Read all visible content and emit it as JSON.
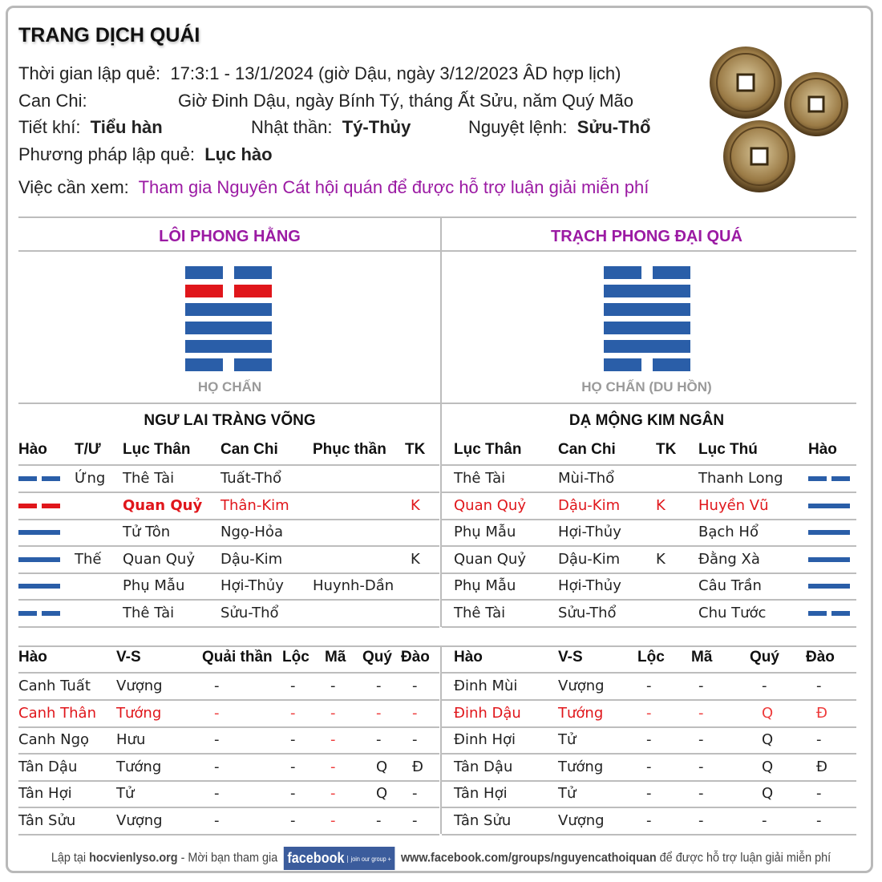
{
  "title": "TRANG DỊCH QUÁI",
  "info": {
    "time_label": "Thời gian lập quẻ:",
    "time_value": "17:3:1 - 13/1/2024 (giờ Dậu, ngày 3/12/2023 ÂD hợp lịch)",
    "canchi_label": "Can Chi:",
    "canchi_value": "Giờ Đinh Dậu, ngày Bính Tý, tháng Ất Sửu, năm Quý Mão",
    "tietkhi_label": "Tiết khí:",
    "tietkhi_value": "Tiểu hàn",
    "nhatthan_label": "Nhật thần:",
    "nhatthan_value": "Tý-Thủy",
    "nguyetlenh_label": "Nguyệt lệnh:",
    "nguyetlenh_value": "Sửu-Thổ",
    "method_label": "Phương pháp lập quẻ:",
    "method_value": "Lục hào",
    "question_label": "Việc cần xem:",
    "question_value": "Tham gia Nguyên Cát hội quán để được hỗ trợ luận giải miễn phí"
  },
  "colors": {
    "purple": "#9b1aa3",
    "blue": "#2a5ea8",
    "red": "#e0161b"
  },
  "main_hexagram": {
    "name": "LÔI PHONG HẰNG",
    "family": "HỌ CHẤN",
    "lines_top_down": [
      "yin",
      "yin-moving",
      "yang",
      "yang",
      "yang",
      "yin"
    ],
    "subtitle": "NGƯ LAI TRÀNG VÕNG"
  },
  "changed_hexagram": {
    "name": "TRẠCH PHONG ĐẠI QUÁ",
    "family": "HỌ CHẤN (DU HỒN)",
    "lines_top_down": [
      "yin",
      "yang",
      "yang",
      "yang",
      "yang",
      "yin"
    ],
    "subtitle": "DẠ MỘNG KIM NGÂN"
  },
  "left_table": {
    "headers": [
      "Hào",
      "T/Ư",
      "Lục Thân",
      "Can Chi",
      "Phục thần",
      "TK"
    ],
    "rows": [
      {
        "line": "yin",
        "tu": "Ứng",
        "lucthan": "Thê Tài",
        "canchi": "Tuất-Thổ",
        "phucthan": "",
        "tk": "",
        "hl": false
      },
      {
        "line": "yin-moving",
        "tu": "",
        "lucthan": "Quan Quỷ",
        "canchi": "Thân-Kim",
        "phucthan": "",
        "tk": "K",
        "hl": true
      },
      {
        "line": "yang",
        "tu": "",
        "lucthan": "Tử Tôn",
        "canchi": "Ngọ-Hỏa",
        "phucthan": "",
        "tk": "",
        "hl": false
      },
      {
        "line": "yang",
        "tu": "Thế",
        "lucthan": "Quan Quỷ",
        "canchi": "Dậu-Kim",
        "phucthan": "",
        "tk": "K",
        "hl": false
      },
      {
        "line": "yang",
        "tu": "",
        "lucthan": "Phụ Mẫu",
        "canchi": "Hợi-Thủy",
        "phucthan": "Huynh-Dần",
        "tk": "",
        "hl": false
      },
      {
        "line": "yin",
        "tu": "",
        "lucthan": "Thê Tài",
        "canchi": "Sửu-Thổ",
        "phucthan": "",
        "tk": "",
        "hl": false
      }
    ]
  },
  "right_table": {
    "headers": [
      "Lục Thân",
      "Can Chi",
      "TK",
      "Lục Thú",
      "Hào"
    ],
    "rows": [
      {
        "lucthan": "Thê Tài",
        "canchi": "Mùi-Thổ",
        "tk": "",
        "lucthu": "Thanh Long",
        "line": "yin",
        "hl": false
      },
      {
        "lucthan": "Quan Quỷ",
        "canchi": "Dậu-Kim",
        "tk": "K",
        "lucthu": "Huyền Vũ",
        "line": "yang",
        "hl": true
      },
      {
        "lucthan": "Phụ Mẫu",
        "canchi": "Hợi-Thủy",
        "tk": "",
        "lucthu": "Bạch Hổ",
        "line": "yang",
        "hl": false
      },
      {
        "lucthan": "Quan Quỷ",
        "canchi": "Dậu-Kim",
        "tk": "K",
        "lucthu": "Đằng Xà",
        "line": "yang",
        "hl": false
      },
      {
        "lucthan": "Phụ Mẫu",
        "canchi": "Hợi-Thủy",
        "tk": "",
        "lucthu": "Câu Trần",
        "line": "yang",
        "hl": false
      },
      {
        "lucthan": "Thê Tài",
        "canchi": "Sửu-Thổ",
        "tk": "",
        "lucthu": "Chu Tước",
        "line": "yin",
        "hl": false
      }
    ]
  },
  "left_stats": {
    "headers": [
      "Hào",
      "V-S",
      "Quải thần",
      "Lộc",
      "Mã",
      "Quý",
      "Đào"
    ],
    "rows": [
      {
        "cells": [
          "Canh Tuất",
          "Vượng",
          "-",
          "-",
          "-",
          "-",
          "-"
        ],
        "hl": false,
        "ma_red": false
      },
      {
        "cells": [
          "Canh Thân",
          "Tướng",
          "-",
          "-",
          "-",
          "-",
          "-"
        ],
        "hl": true,
        "ma_red": true
      },
      {
        "cells": [
          "Canh Ngọ",
          "Hưu",
          "-",
          "-",
          "-",
          "-",
          "-"
        ],
        "hl": false,
        "ma_red": true
      },
      {
        "cells": [
          "Tân Dậu",
          "Tướng",
          "-",
          "-",
          "-",
          "Q",
          "Đ"
        ],
        "hl": false,
        "ma_red": true
      },
      {
        "cells": [
          "Tân Hợi",
          "Tử",
          "-",
          "-",
          "-",
          "Q",
          "-"
        ],
        "hl": false,
        "ma_red": true
      },
      {
        "cells": [
          "Tân Sửu",
          "Vượng",
          "-",
          "-",
          "-",
          "-",
          "-"
        ],
        "hl": false,
        "ma_red": true
      }
    ]
  },
  "right_stats": {
    "headers": [
      "Hào",
      "V-S",
      "Lộc",
      "Mã",
      "Quý",
      "Đào"
    ],
    "rows": [
      {
        "cells": [
          "Đinh Mùi",
          "Vượng",
          "-",
          "-",
          "-",
          "-"
        ],
        "hl": false
      },
      {
        "cells": [
          "Đinh Dậu",
          "Tướng",
          "-",
          "-",
          "Q",
          "Đ"
        ],
        "hl": true
      },
      {
        "cells": [
          "Đinh Hợi",
          "Tử",
          "-",
          "-",
          "Q",
          "-"
        ],
        "hl": false
      },
      {
        "cells": [
          "Tân Dậu",
          "Tướng",
          "-",
          "-",
          "Q",
          "Đ"
        ],
        "hl": false
      },
      {
        "cells": [
          "Tân Hợi",
          "Tử",
          "-",
          "-",
          "Q",
          "-"
        ],
        "hl": false
      },
      {
        "cells": [
          "Tân Sửu",
          "Vượng",
          "-",
          "-",
          "-",
          "-"
        ],
        "hl": false
      }
    ]
  },
  "footer": {
    "prefix": "Lập tại",
    "site": "hocvienlyso.org",
    "invite": "- Mời bạn tham gia",
    "fb_logo": "facebook",
    "fb_join": "join our group +",
    "group_url": "www.facebook.com/groups/nguyencathoiquan",
    "suffix": "để được hỗ trợ luận giải miễn phí"
  },
  "coins_icon": "ancient-coins-image"
}
